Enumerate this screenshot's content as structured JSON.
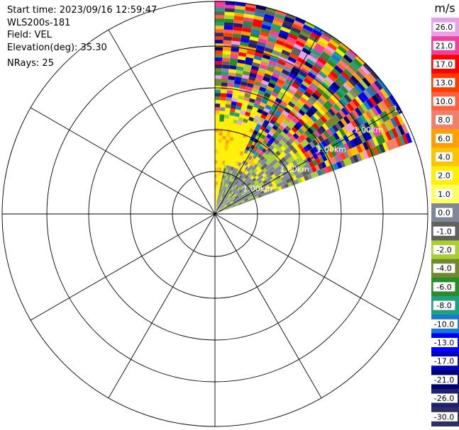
{
  "info": {
    "start_time": "Start time: 2023/09/16 12:59:47",
    "instrument": "WLS200s-181",
    "field": "Field: VEL",
    "elevation": "Elevation(deg): 35.30",
    "nrays": "NRays: 25"
  },
  "chart_data": {
    "type": "heatmap",
    "projection": "polar-ppi",
    "field": "VEL",
    "units": "m/s",
    "n_rays": 25,
    "azimuth_range_deg": [
      0,
      70
    ],
    "range_ring_labels": [
      "1.00km",
      "1.00km",
      "1.00km",
      "1.00km",
      "1.00km"
    ],
    "radial_spokes_deg": [
      0,
      30,
      60,
      90,
      120,
      150,
      180,
      210,
      240,
      270,
      300,
      330
    ],
    "colorbar": {
      "title": "m/s",
      "tick_labels": [
        "26.0",
        "21.0",
        "17.0",
        "13.0",
        "10.0",
        "8.0",
        "6.0",
        "4.0",
        "2.0",
        "1.0",
        "0.0",
        "-1.0",
        "-2.0",
        "-4.0",
        "-6.0",
        "-8.0",
        "-10.0",
        "-13.0",
        "-17.0",
        "-21.0",
        "-26.0",
        "-30.0"
      ],
      "colors": [
        "#e8a0e8",
        "#f0409c",
        "#ff0000",
        "#ff3c00",
        "#ff6040",
        "#f0806a",
        "#ffa000",
        "#ffc400",
        "#fff000",
        "#ffff60",
        "#808898",
        "#606060",
        "#a8d030",
        "#708830",
        "#288c28",
        "#20a080",
        "#1878d0",
        "#0000ff",
        "#0000b8",
        "#00006c",
        "#202070",
        "#303060"
      ]
    }
  }
}
